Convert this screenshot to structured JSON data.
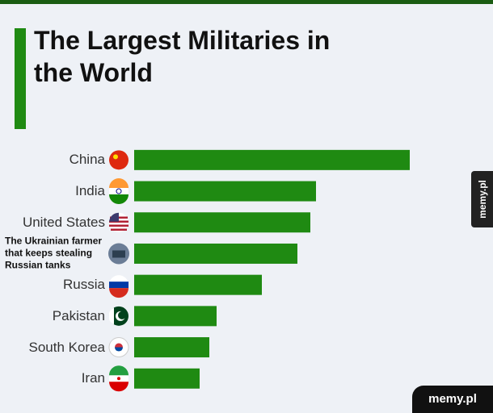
{
  "chart_data": {
    "type": "bar",
    "orientation": "horizontal",
    "title": "The Largest Militaries in the World",
    "categories": [
      "China",
      "India",
      "United States",
      "The Ukrainian farmer that keeps stealing Russian tanks",
      "Russia",
      "Pakistan",
      "South Korea",
      "Iran"
    ],
    "values": [
      341,
      225,
      218,
      202,
      158,
      102,
      93,
      81
    ],
    "color": "#1f8a12",
    "xlim": [
      0,
      341
    ]
  },
  "watermarks": [
    "memy.pl",
    "memy.pl"
  ]
}
